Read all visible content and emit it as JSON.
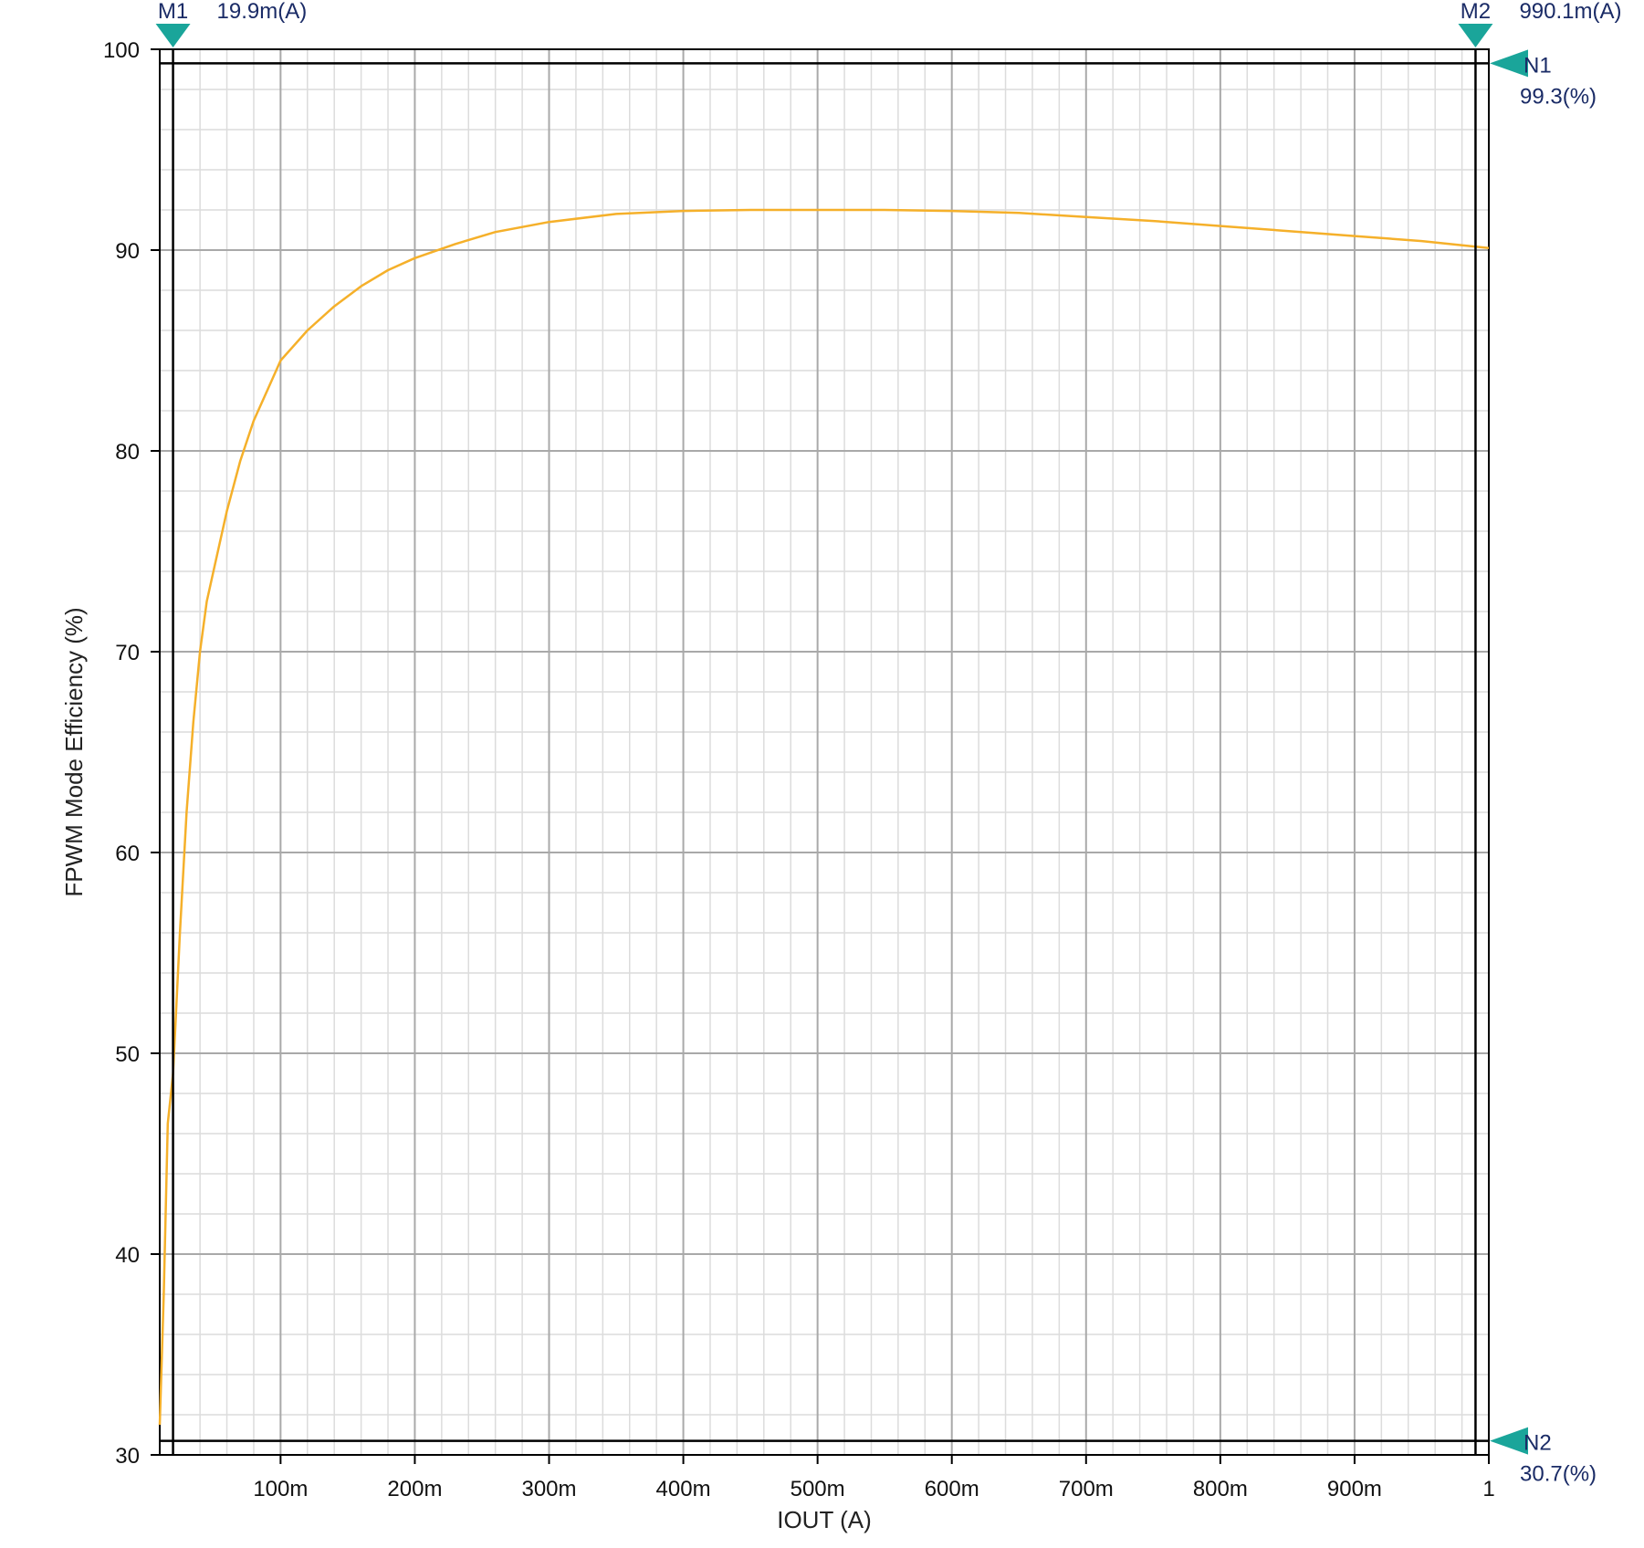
{
  "chart_data": {
    "type": "line",
    "title": "",
    "xlabel": "IOUT  (A)",
    "ylabel": "FPWM Mode Efficiency  (%)",
    "xlim": [
      0.01,
      1.0
    ],
    "ylim": [
      30,
      100
    ],
    "x_ticks": [
      0.1,
      0.2,
      0.3,
      0.4,
      0.5,
      0.6,
      0.7,
      0.8,
      0.9,
      1.0
    ],
    "x_tick_labels": [
      "100m",
      "200m",
      "300m",
      "400m",
      "500m",
      "600m",
      "700m",
      "800m",
      "900m",
      "1"
    ],
    "y_ticks": [
      30,
      40,
      50,
      60,
      70,
      80,
      90,
      100
    ],
    "y_tick_labels": [
      "30",
      "40",
      "50",
      "60",
      "70",
      "80",
      "90",
      "100"
    ],
    "grid": true,
    "series": [
      {
        "color": "#f5b02a",
        "x": [
          0.01,
          0.013,
          0.016,
          0.0199,
          0.025,
          0.03,
          0.035,
          0.04,
          0.045,
          0.05,
          0.06,
          0.07,
          0.08,
          0.09,
          0.1,
          0.12,
          0.14,
          0.16,
          0.18,
          0.2,
          0.23,
          0.26,
          0.3,
          0.35,
          0.4,
          0.45,
          0.5,
          0.55,
          0.6,
          0.65,
          0.7,
          0.75,
          0.8,
          0.85,
          0.9,
          0.95,
          1.0
        ],
        "y": [
          31.5,
          38.0,
          46.5,
          49.0,
          56.0,
          62.0,
          66.5,
          70.0,
          72.5,
          74.0,
          77.0,
          79.5,
          81.5,
          83.0,
          84.5,
          86.0,
          87.2,
          88.2,
          89.0,
          89.6,
          90.3,
          90.9,
          91.4,
          91.8,
          91.95,
          92.0,
          92.0,
          92.0,
          91.95,
          91.85,
          91.65,
          91.45,
          91.2,
          90.95,
          90.7,
          90.45,
          90.1
        ]
      }
    ],
    "markers": {
      "vertical": [
        {
          "label": "M1",
          "value_text": "19.9m(A)",
          "x": 0.0199
        },
        {
          "label": "M2",
          "value_text": "990.1m(A)",
          "x": 0.9901
        }
      ],
      "horizontal": [
        {
          "label": "N1",
          "value_text": "99.3(%)",
          "y": 99.3
        },
        {
          "label": "N2",
          "value_text": "30.7(%)",
          "y": 30.7
        }
      ],
      "marker_color": "#1aa59a"
    }
  }
}
